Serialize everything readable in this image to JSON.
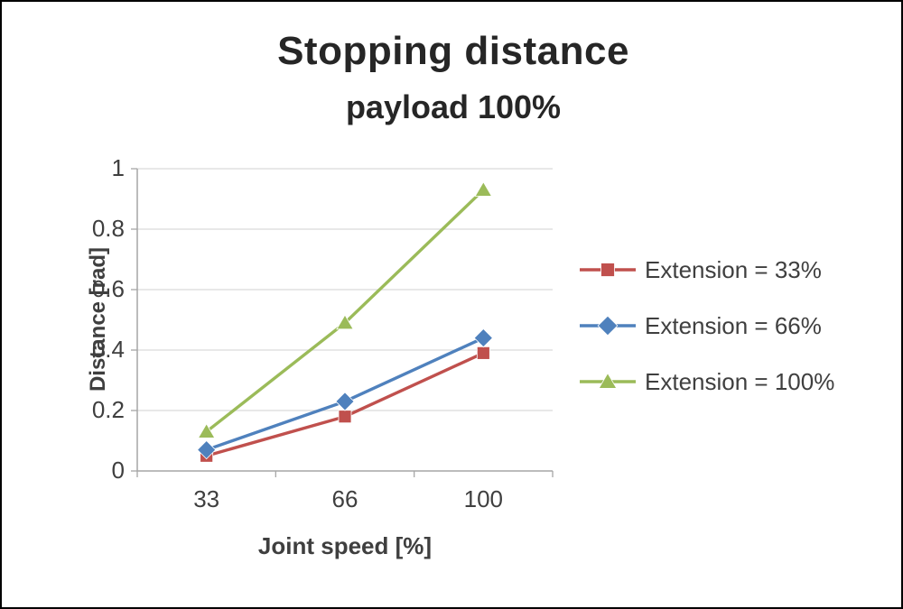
{
  "chart_data": {
    "type": "line",
    "title": "Stopping distance",
    "subtitle": "payload 100%",
    "xlabel": "Joint speed [%]",
    "ylabel": "Distance [rad]",
    "categories": [
      "33",
      "66",
      "100"
    ],
    "ylim": [
      0,
      1
    ],
    "yticks": [
      "0",
      "0.2",
      "0.4",
      "0.6",
      "0.8",
      "1"
    ],
    "grid": "horizontal",
    "legend_position": "right",
    "series": [
      {
        "name": "Extension = 33%",
        "marker": "square",
        "color": "#C0504D",
        "values": [
          0.05,
          0.18,
          0.39
        ]
      },
      {
        "name": "Extension = 66%",
        "marker": "diamond",
        "color": "#4F81BD",
        "values": [
          0.07,
          0.23,
          0.44
        ]
      },
      {
        "name": "Extension = 100%",
        "marker": "triangle",
        "color": "#9BBB59",
        "values": [
          0.13,
          0.49,
          0.93
        ]
      }
    ],
    "colors": {
      "grid": "#D9D9D9",
      "axis": "#A6A6A6",
      "tick_text": "#3f3f3f"
    }
  }
}
